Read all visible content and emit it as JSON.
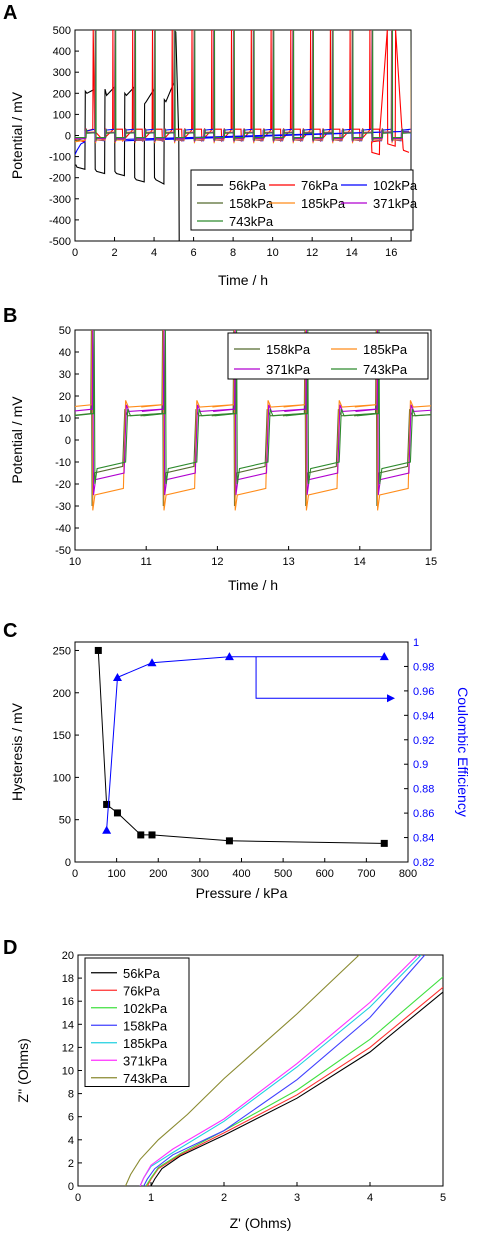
{
  "chart_data": [
    {
      "panel": "A",
      "type": "line",
      "xlabel": "Time / h",
      "ylabel": "Potential / mV",
      "xlim": [
        0,
        17
      ],
      "ylim": [
        -500,
        500
      ],
      "xticks": [
        0,
        2,
        4,
        6,
        8,
        10,
        12,
        14,
        16
      ],
      "yticks": [
        -500,
        -400,
        -300,
        -200,
        -100,
        0,
        100,
        200,
        300,
        400,
        500
      ],
      "legend_position": "bottom-right",
      "series": [
        {
          "name": "56kPa",
          "color": "#000000",
          "x": [
            0,
            0.05,
            0.1,
            0.5,
            0.52,
            0.6,
            1.0,
            1.02,
            1.1,
            1.5,
            1.52,
            1.6,
            2.0,
            2.02,
            2.1,
            2.5,
            2.52,
            2.6,
            3.0,
            3.02,
            3.1,
            3.5,
            3.52,
            3.6,
            4.0,
            4.02,
            4.1,
            4.5,
            4.52,
            4.6,
            5.0,
            5.02,
            5.1,
            5.25,
            5.27,
            5.3,
            5.35
          ],
          "y": [
            -140,
            -140,
            -150,
            -160,
            210,
            200,
            220,
            -160,
            -170,
            -180,
            220,
            190,
            230,
            -170,
            -180,
            -190,
            200,
            190,
            230,
            -200,
            -210,
            -220,
            150,
            160,
            220,
            -200,
            -210,
            -230,
            170,
            160,
            250,
            500,
            490,
            -20,
            -500,
            -500,
            -500
          ]
        },
        {
          "name": "76kPa",
          "color": "#ff0000",
          "x": [
            0,
            0.5,
            0.52,
            0.9,
            0.92,
            1.0,
            1.4,
            15.0,
            15.02,
            15.4,
            15.42,
            15.8,
            15.82,
            16.2,
            16.22,
            16.6,
            16.62,
            16.9
          ],
          "y": [
            -20,
            -30,
            20,
            30,
            500,
            20,
            -20,
            -30,
            -80,
            -90,
            20,
            500,
            -40,
            -50,
            500,
            -60,
            -70,
            -80
          ]
        },
        {
          "name": "102kPa",
          "color": "#0000ff",
          "x": [
            0,
            0.1,
            0.3,
            0.5,
            0.52,
            1.0,
            1.02,
            1.5,
            1.52,
            2.0,
            2.02,
            16.9
          ],
          "y": [
            -90,
            -70,
            -40,
            -30,
            20,
            30,
            -20,
            -25,
            25,
            30,
            -20,
            20
          ]
        },
        {
          "name": "158kPa",
          "color": "#556b2f",
          "x": [
            0,
            17
          ],
          "y": [
            -25,
            -25
          ]
        },
        {
          "name": "185kPa",
          "color": "#ff8c1a",
          "x": [
            0,
            17
          ],
          "y": [
            -30,
            -30
          ]
        },
        {
          "name": "371kPa",
          "color": "#b000d0",
          "x": [
            0,
            17
          ],
          "y": [
            -15,
            -15
          ]
        },
        {
          "name": "743kPa",
          "color": "#2e8b2e",
          "x": [
            0,
            17
          ],
          "y": [
            -10,
            -10
          ]
        }
      ]
    },
    {
      "panel": "B",
      "type": "line",
      "xlabel": "Time / h",
      "ylabel": "Potential / mV",
      "xlim": [
        10,
        15
      ],
      "ylim": [
        -50,
        50
      ],
      "xticks": [
        10,
        11,
        12,
        13,
        14,
        15
      ],
      "yticks": [
        -50,
        -40,
        -30,
        -20,
        -10,
        0,
        10,
        20,
        30,
        40,
        50
      ],
      "legend_position": "top-right",
      "series": [
        {
          "name": "158kPa",
          "color": "#556b2f",
          "offset": 0.02,
          "plateau": [
            11,
            -12
          ],
          "spike": [
            -30,
            50
          ]
        },
        {
          "name": "185kPa",
          "color": "#ff8c1a",
          "offset": 0.03,
          "plateau": [
            15,
            -22
          ],
          "spike": [
            -32,
            50
          ]
        },
        {
          "name": "371kPa",
          "color": "#b000d0",
          "offset": 0.04,
          "plateau": [
            13,
            -15
          ],
          "spike": [
            -25,
            50
          ]
        },
        {
          "name": "743kPa",
          "color": "#2e8b2e",
          "offset": 0.06,
          "plateau": [
            11,
            -10
          ],
          "spike": [
            -20,
            50
          ]
        }
      ]
    },
    {
      "panel": "C",
      "type": "scatter",
      "xlabel": "Pressure / kPa",
      "ylabel": "Hysteresis / mV",
      "y2label": "Coulombic Efficiency",
      "xlim": [
        0,
        800
      ],
      "ylim": [
        0,
        260
      ],
      "y2lim": [
        0.82,
        1.0
      ],
      "xticks": [
        0,
        100,
        200,
        300,
        400,
        500,
        600,
        700,
        800
      ],
      "yticks": [
        0,
        50,
        100,
        150,
        200,
        250
      ],
      "y2ticks": [
        0.82,
        0.84,
        0.86,
        0.88,
        0.9,
        0.92,
        0.94,
        0.96,
        0.98,
        1.0
      ],
      "series": [
        {
          "name": "Hysteresis",
          "axis": "left",
          "color": "#000000",
          "marker": "square",
          "x": [
            56,
            76,
            102,
            158,
            185,
            371,
            743
          ],
          "y": [
            250,
            68,
            58,
            32,
            32,
            25,
            22
          ]
        },
        {
          "name": "Coulombic Efficiency",
          "axis": "right",
          "color": "#0000ff",
          "marker": "triangle",
          "x": [
            76,
            102,
            185,
            371,
            743
          ],
          "y": [
            0.846,
            0.971,
            0.983,
            0.988,
            0.988
          ]
        }
      ]
    },
    {
      "panel": "D",
      "type": "line",
      "xlabel": "Z' (Ohms)",
      "ylabel": "Z'' (Ohms)",
      "xlim": [
        0,
        5
      ],
      "ylim": [
        0,
        20
      ],
      "xticks": [
        0,
        1,
        2,
        3,
        4,
        5
      ],
      "yticks": [
        0,
        2,
        4,
        6,
        8,
        10,
        12,
        14,
        16,
        18,
        20
      ],
      "legend_position": "top-left",
      "series": [
        {
          "name": "56kPa",
          "color": "#000000",
          "x": [
            1.0,
            1.05,
            1.15,
            1.4,
            2.0,
            3.0,
            4.0,
            5.0
          ],
          "y": [
            0,
            0.6,
            1.5,
            2.6,
            4.4,
            7.6,
            11.6,
            16.8
          ]
        },
        {
          "name": "76kPa",
          "color": "#ff3030",
          "x": [
            0.95,
            1.0,
            1.1,
            1.4,
            2.0,
            3.0,
            4.0,
            5.0
          ],
          "y": [
            0,
            0.6,
            1.5,
            2.7,
            4.6,
            7.9,
            12.0,
            17.2
          ]
        },
        {
          "name": "102kPa",
          "color": "#40e040",
          "x": [
            0.93,
            1.0,
            1.1,
            1.4,
            2.0,
            3.0,
            4.0,
            5.0
          ],
          "y": [
            0,
            0.7,
            1.6,
            2.8,
            4.8,
            8.3,
            12.7,
            18.1
          ]
        },
        {
          "name": "158kPa",
          "color": "#4040ff",
          "x": [
            0.9,
            0.95,
            1.05,
            1.3,
            2.0,
            3.0,
            4.0,
            4.75
          ],
          "y": [
            0,
            0.6,
            1.5,
            2.7,
            4.8,
            9.2,
            14.6,
            20.0
          ]
        },
        {
          "name": "185kPa",
          "color": "#20d0e0",
          "x": [
            0.85,
            0.9,
            1.0,
            1.3,
            2.0,
            3.0,
            4.0,
            4.7
          ],
          "y": [
            0,
            0.7,
            1.7,
            2.9,
            5.6,
            10.3,
            15.5,
            20.0
          ]
        },
        {
          "name": "371kPa",
          "color": "#ff30ff",
          "x": [
            0.85,
            0.9,
            1.0,
            1.3,
            2.0,
            3.0,
            4.0,
            4.65
          ],
          "y": [
            0,
            0.7,
            1.8,
            3.2,
            5.8,
            10.6,
            15.9,
            20.0
          ]
        },
        {
          "name": "743kPa",
          "color": "#8a8a30",
          "x": [
            0.65,
            0.72,
            0.85,
            1.1,
            1.5,
            2.0,
            3.0,
            3.85
          ],
          "y": [
            0,
            1.0,
            2.3,
            4.0,
            6.2,
            9.3,
            14.9,
            20.0
          ]
        }
      ]
    }
  ]
}
